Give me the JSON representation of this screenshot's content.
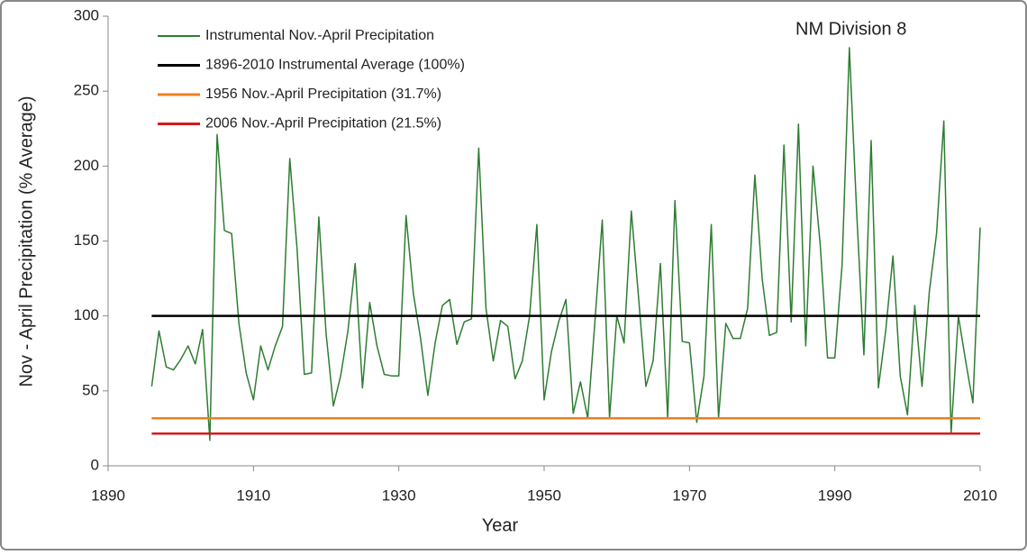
{
  "chart_data": {
    "type": "line",
    "x_label": "Year",
    "y_label": "Nov - April Precipitation (% Average)",
    "annotation": "NM Division 8",
    "xlim": [
      1890,
      2010
    ],
    "xticks": [
      1890,
      1910,
      1930,
      1950,
      1970,
      1990,
      2010
    ],
    "ylim": [
      0,
      300
    ],
    "yticks": [
      0,
      50,
      100,
      150,
      200,
      250,
      300
    ],
    "legend": "upper left",
    "grid": false,
    "x": [
      1896,
      1897,
      1898,
      1899,
      1900,
      1901,
      1902,
      1903,
      1904,
      1905,
      1906,
      1907,
      1908,
      1909,
      1910,
      1911,
      1912,
      1913,
      1914,
      1915,
      1916,
      1917,
      1918,
      1919,
      1920,
      1921,
      1922,
      1923,
      1924,
      1925,
      1926,
      1927,
      1928,
      1929,
      1930,
      1931,
      1932,
      1933,
      1934,
      1935,
      1936,
      1937,
      1938,
      1939,
      1940,
      1941,
      1942,
      1943,
      1944,
      1945,
      1946,
      1947,
      1948,
      1949,
      1950,
      1951,
      1952,
      1953,
      1954,
      1955,
      1956,
      1957,
      1958,
      1959,
      1960,
      1961,
      1962,
      1963,
      1964,
      1965,
      1966,
      1967,
      1968,
      1969,
      1970,
      1971,
      1972,
      1973,
      1974,
      1975,
      1976,
      1977,
      1978,
      1979,
      1980,
      1981,
      1982,
      1983,
      1984,
      1985,
      1986,
      1987,
      1988,
      1989,
      1990,
      1991,
      1992,
      1993,
      1994,
      1995,
      1996,
      1997,
      1998,
      1999,
      2000,
      2001,
      2002,
      2003,
      2004,
      2005,
      2006,
      2007,
      2008,
      2009,
      2010
    ],
    "series": [
      {
        "name": "Instrumental Nov.-April Precipitation",
        "color": "#2e7d32",
        "width": 1.5,
        "values": [
          53,
          90,
          66,
          64,
          71,
          80,
          68,
          91,
          17,
          221,
          157,
          155,
          95,
          62,
          44,
          80,
          64,
          80,
          93,
          205,
          145,
          61,
          62,
          166,
          88,
          40,
          60,
          90,
          135,
          52,
          109,
          80,
          61,
          60,
          60,
          167,
          115,
          85,
          47,
          82,
          107,
          111,
          81,
          96,
          98,
          212,
          105,
          70,
          97,
          93,
          58,
          70,
          100,
          161,
          44,
          76,
          96,
          111,
          35,
          56,
          31.7,
          97,
          164,
          32,
          100,
          82,
          170,
          112,
          53,
          70,
          135,
          32,
          177,
          83,
          82,
          29,
          60,
          161,
          32,
          95,
          85,
          85,
          105,
          194,
          125,
          87,
          89,
          214,
          96,
          228,
          80,
          200,
          147,
          72,
          72,
          134,
          279,
          170,
          74,
          217,
          52,
          90,
          140,
          60,
          34,
          107,
          53,
          116,
          155,
          230,
          21.5,
          100,
          70,
          42,
          159
        ]
      },
      {
        "name": "1896-2010 Instrumental Average (100%)",
        "color": "#000000",
        "width": 2.5,
        "x": [
          1896,
          2010
        ],
        "values": [
          100,
          100
        ]
      },
      {
        "name": "1956 Nov.-April Precipitation (31.7%)",
        "color": "#f07f1f",
        "width": 2.5,
        "x": [
          1896,
          2010
        ],
        "values": [
          31.7,
          31.7
        ]
      },
      {
        "name": "2006 Nov.-April Precipitation (21.5%)",
        "color": "#d7191c",
        "width": 2.5,
        "x": [
          1896,
          2010
        ],
        "values": [
          21.5,
          21.5
        ]
      }
    ]
  }
}
